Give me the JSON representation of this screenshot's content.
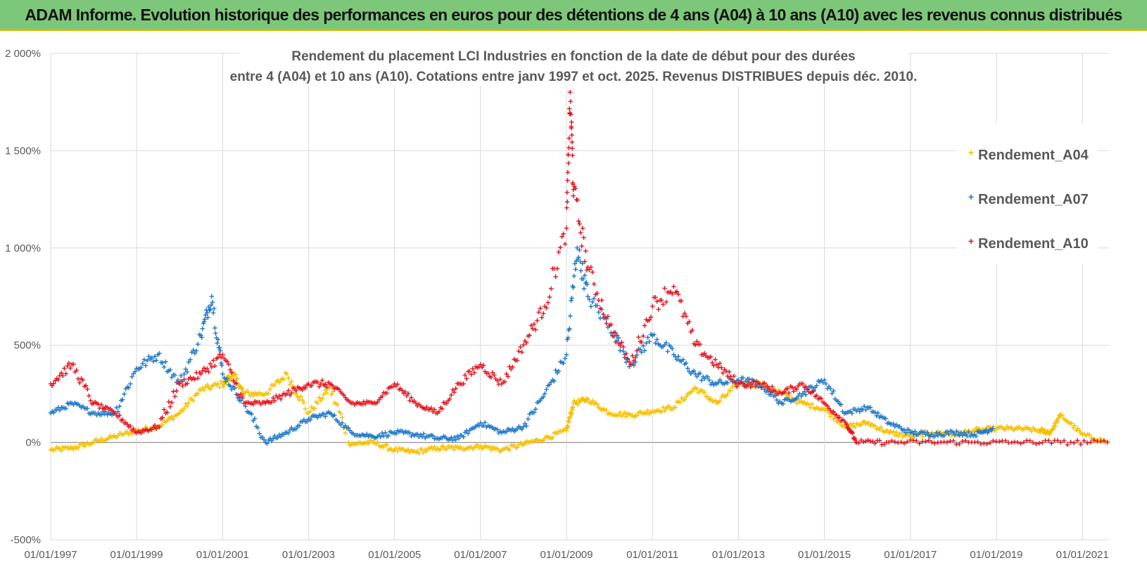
{
  "banner": {
    "title": "ADAM Informe. Evolution historique des performances en euros pour des détentions de 4 ans (A04) à 10 ans (A10) avec les revenus connus distribués"
  },
  "chart_data": {
    "type": "scatter",
    "title_line1": "Rendement du placement LCI Industries en fonction de la date de début pour des durées",
    "title_line2": "entre 4 (A04) et 10 ans (A10). Cotations entre janv 1997 et oct. 2025. Revenus DISTRIBUES depuis déc. 2010.",
    "x_range": [
      "1997-01-01",
      "2021-08-15"
    ],
    "ylim": [
      -500,
      2000
    ],
    "y_ticks": [
      -500,
      0,
      500,
      1000,
      1500,
      2000
    ],
    "y_tick_labels": [
      "-500%",
      "0%",
      "500%",
      "1 000%",
      "1 500%",
      "2 000%"
    ],
    "x_ticks": [
      "1997-01-01",
      "1999-01-01",
      "2001-01-01",
      "2003-01-01",
      "2005-01-01",
      "2007-01-01",
      "2009-01-01",
      "2011-01-01",
      "2013-01-01",
      "2015-01-01",
      "2017-01-01",
      "2019-01-01",
      "2021-01-01"
    ],
    "x_tick_labels": [
      "01/01/1997",
      "01/01/1999",
      "01/01/2001",
      "01/01/2003",
      "01/01/2005",
      "01/01/2007",
      "01/01/2009",
      "01/01/2011",
      "01/01/2013",
      "01/01/2015",
      "01/01/2017",
      "01/01/2019",
      "01/01/2021"
    ],
    "grid": true,
    "legend_position": "top-right",
    "series": [
      {
        "name": "Rendement_A04",
        "color": "#f5c000",
        "marker": "+",
        "x": [
          "1997-01-01",
          "1997-07-01",
          "1998-01-01",
          "1998-07-01",
          "1999-01-01",
          "1999-07-01",
          "2000-01-01",
          "2000-07-01",
          "2001-01-01",
          "2001-04-01",
          "2001-07-01",
          "2002-01-01",
          "2002-07-01",
          "2003-01-01",
          "2003-07-01",
          "2004-01-01",
          "2004-07-01",
          "2005-01-01",
          "2005-07-01",
          "2006-01-01",
          "2006-07-01",
          "2007-01-01",
          "2007-07-01",
          "2008-01-01",
          "2008-07-01",
          "2009-01-01",
          "2009-03-01",
          "2009-07-01",
          "2010-01-01",
          "2010-07-01",
          "2011-01-01",
          "2011-07-01",
          "2012-01-01",
          "2012-07-01",
          "2013-01-01",
          "2013-07-01",
          "2014-01-01",
          "2014-07-01",
          "2015-01-01",
          "2015-07-01",
          "2016-01-01",
          "2016-07-01",
          "2017-01-01",
          "2017-07-01",
          "2018-01-01",
          "2018-07-01",
          "2019-01-01",
          "2019-07-01",
          "2020-01-01",
          "2020-04-01",
          "2020-07-01",
          "2021-01-01",
          "2021-08-01"
        ],
        "y": [
          -40,
          -30,
          0,
          30,
          60,
          80,
          150,
          270,
          300,
          350,
          250,
          250,
          350,
          150,
          280,
          -10,
          0,
          -40,
          -50,
          -30,
          -30,
          -20,
          -40,
          -10,
          20,
          60,
          200,
          220,
          150,
          140,
          160,
          180,
          280,
          200,
          300,
          300,
          250,
          200,
          170,
          80,
          100,
          50,
          30,
          50,
          40,
          60,
          70,
          70,
          60,
          50,
          140,
          40,
          0
        ]
      },
      {
        "name": "Rendement_A07",
        "color": "#1f78c8",
        "marker": "+",
        "x": [
          "1997-01-01",
          "1997-07-01",
          "1998-01-01",
          "1998-07-01",
          "1999-01-01",
          "1999-07-01",
          "2000-01-01",
          "2000-07-01",
          "2000-10-01",
          "2001-01-01",
          "2001-07-01",
          "2002-01-01",
          "2002-07-01",
          "2003-01-01",
          "2003-07-01",
          "2004-01-01",
          "2004-07-01",
          "2005-01-01",
          "2005-07-01",
          "2006-01-01",
          "2006-07-01",
          "2007-01-01",
          "2007-07-01",
          "2008-01-01",
          "2008-07-01",
          "2009-01-01",
          "2009-04-01",
          "2009-07-01",
          "2010-01-01",
          "2010-07-01",
          "2011-01-01",
          "2011-07-01",
          "2012-01-01",
          "2012-07-01",
          "2013-01-01",
          "2013-07-01",
          "2014-01-01",
          "2014-07-01",
          "2015-01-01",
          "2015-07-01",
          "2016-01-01",
          "2016-07-01",
          "2017-01-01",
          "2017-07-01",
          "2018-01-01",
          "2018-07-01",
          "2018-12-01"
        ],
        "y": [
          150,
          200,
          150,
          150,
          380,
          450,
          300,
          550,
          750,
          350,
          200,
          0,
          50,
          120,
          150,
          50,
          30,
          50,
          40,
          20,
          20,
          100,
          50,
          80,
          250,
          450,
          1000,
          750,
          600,
          400,
          550,
          450,
          350,
          300,
          320,
          300,
          200,
          250,
          320,
          150,
          180,
          100,
          50,
          40,
          50,
          40,
          70
        ]
      },
      {
        "name": "Rendement_A10",
        "color": "#e3151f",
        "marker": "+",
        "x": [
          "1997-01-01",
          "1997-07-01",
          "1998-01-01",
          "1998-07-01",
          "1999-01-01",
          "1999-07-01",
          "2000-01-01",
          "2000-07-01",
          "2001-01-01",
          "2001-07-01",
          "2002-01-01",
          "2002-07-01",
          "2003-01-01",
          "2003-07-01",
          "2004-01-01",
          "2004-07-01",
          "2005-01-01",
          "2005-07-01",
          "2006-01-01",
          "2006-07-01",
          "2007-01-01",
          "2007-07-01",
          "2008-01-01",
          "2008-07-01",
          "2009-01-01",
          "2009-02-01",
          "2009-03-01",
          "2009-07-01",
          "2010-01-01",
          "2010-07-01",
          "2011-01-01",
          "2011-07-01",
          "2012-01-01",
          "2012-07-01",
          "2013-01-01",
          "2013-07-01",
          "2014-01-01",
          "2014-07-01",
          "2015-01-01",
          "2015-07-01",
          "2015-10-01",
          "2016-07-01",
          "2017-07-01",
          "2018-07-01",
          "2019-07-01",
          "2020-07-01",
          "2021-08-01"
        ],
        "y": [
          300,
          400,
          200,
          150,
          50,
          80,
          300,
          350,
          450,
          200,
          200,
          250,
          300,
          300,
          200,
          200,
          300,
          200,
          150,
          300,
          400,
          300,
          500,
          700,
          1100,
          1800,
          1300,
          900,
          600,
          400,
          700,
          800,
          500,
          400,
          300,
          300,
          250,
          300,
          200,
          100,
          0,
          0,
          0,
          0,
          0,
          0,
          0
        ]
      }
    ]
  }
}
